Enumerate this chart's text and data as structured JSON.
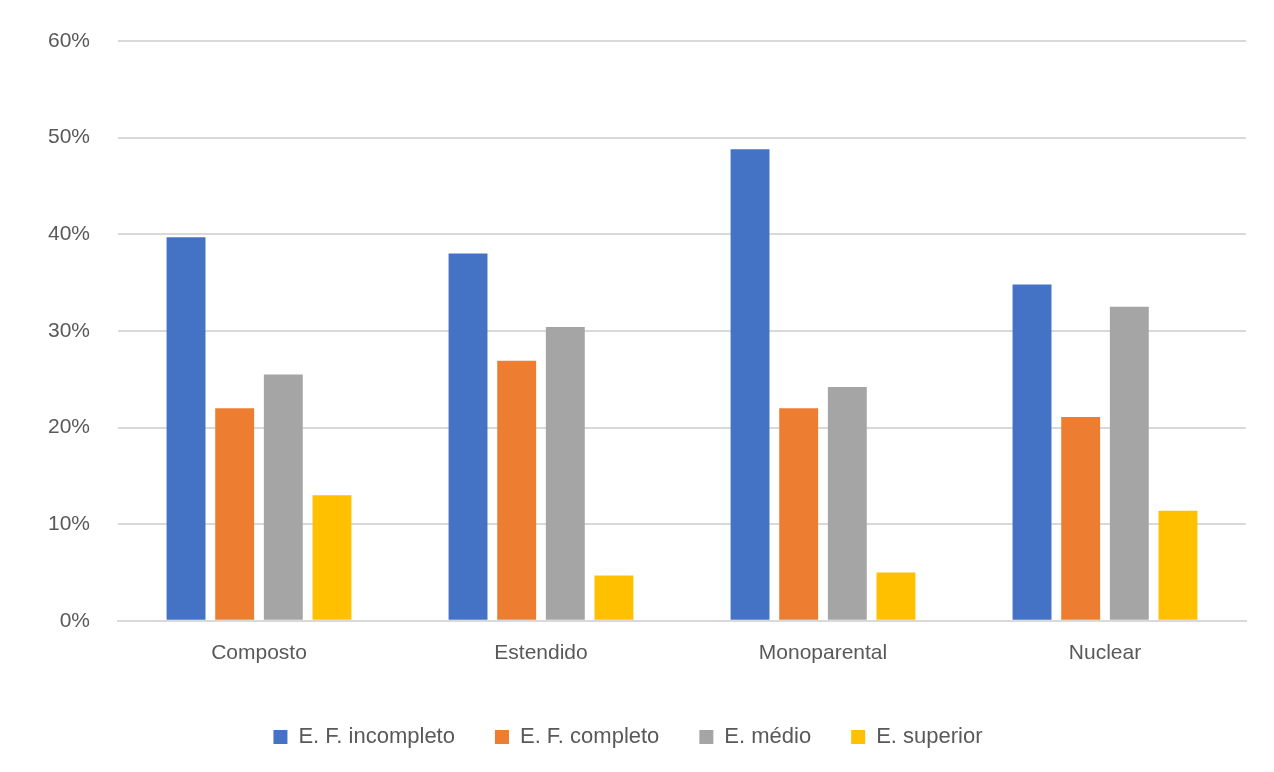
{
  "chart_data": {
    "type": "bar",
    "categories": [
      "Composto",
      "Estendido",
      "Monoparental",
      "Nuclear"
    ],
    "series": [
      {
        "name": "E. F. incompleto",
        "color": "#4472c4",
        "values": [
          39.7,
          38.0,
          48.8,
          34.8
        ]
      },
      {
        "name": "E. F. completo",
        "color": "#ed7d31",
        "values": [
          22.0,
          26.9,
          22.0,
          21.1
        ]
      },
      {
        "name": "E. médio",
        "color": "#a5a5a5",
        "values": [
          25.5,
          30.4,
          24.2,
          32.5
        ]
      },
      {
        "name": "E. superior",
        "color": "#ffc000",
        "values": [
          13.0,
          4.7,
          5.0,
          11.4
        ]
      }
    ],
    "ylim": [
      0,
      60
    ],
    "yticks": [
      {
        "value": 0,
        "label": "0%"
      },
      {
        "value": 10,
        "label": "10%"
      },
      {
        "value": 20,
        "label": "20%"
      },
      {
        "value": 30,
        "label": "30%"
      },
      {
        "value": 40,
        "label": "40%"
      },
      {
        "value": 50,
        "label": "50%"
      },
      {
        "value": 60,
        "label": "60%"
      }
    ],
    "grid": "y",
    "legend": "bottom"
  }
}
